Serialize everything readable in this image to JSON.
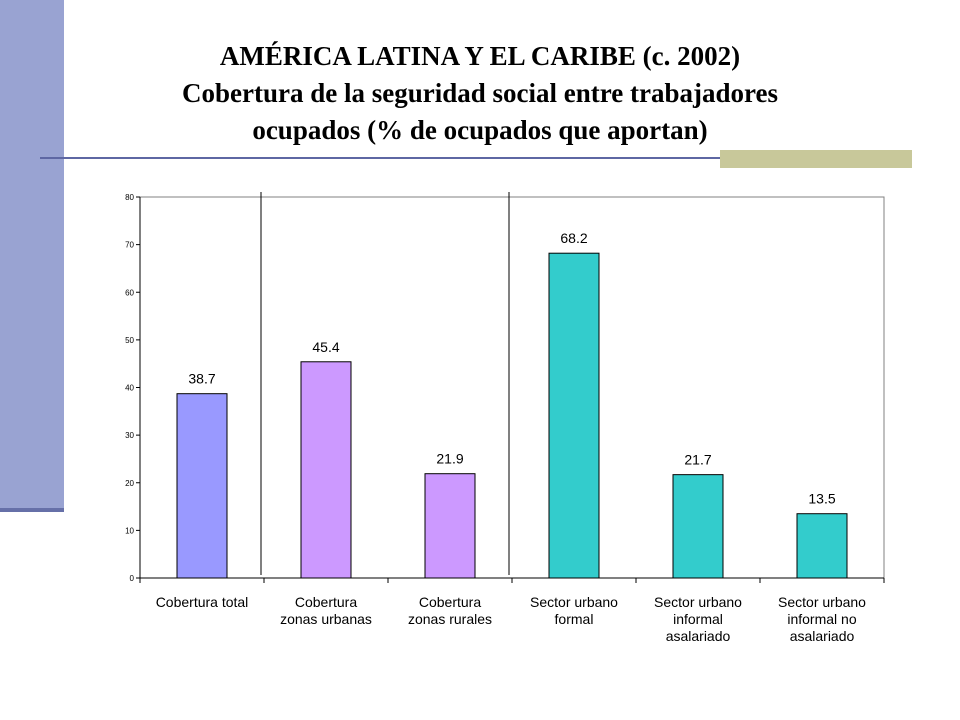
{
  "title": {
    "line1": "AMÉRICA LATINA Y EL CARIBE (c. 2002)",
    "line2": "Cobertura de la seguridad social entre trabajadores",
    "line3": "ocupados (% de ocupados que aportan)"
  },
  "colors": {
    "sidebar": "#99a3d2",
    "rule": "#5e67a3",
    "accent": "#c8c89a",
    "bar_total": "#9999ff",
    "bar_zone": "#cc99ff",
    "bar_sector": "#33cccc"
  },
  "chart_data": {
    "type": "bar",
    "categories": [
      [
        "Cobertura total"
      ],
      [
        "Cobertura",
        "zonas urbanas"
      ],
      [
        "Cobertura",
        "zonas rurales"
      ],
      [
        "Sector urbano",
        "formal"
      ],
      [
        "Sector urbano",
        "informal",
        "asalariado"
      ],
      [
        "Sector urbano",
        "informal no",
        "asalariado"
      ]
    ],
    "values": [
      38.7,
      45.4,
      21.9,
      68.2,
      21.7,
      13.5
    ],
    "data_labels": [
      "38.7",
      "45.4",
      "21.9",
      "68.2",
      "21.7",
      "13.5"
    ],
    "bar_colors": [
      "#9999ff",
      "#cc99ff",
      "#cc99ff",
      "#33cccc",
      "#33cccc",
      "#33cccc"
    ],
    "ylim": [
      0,
      80
    ],
    "yticks": [
      "0",
      "10",
      "20",
      "30",
      "40",
      "50",
      "60",
      "70",
      "80"
    ],
    "group_separators_after": [
      0,
      2
    ],
    "xlabel": "",
    "ylabel": "",
    "grid": false,
    "legend": "none"
  }
}
